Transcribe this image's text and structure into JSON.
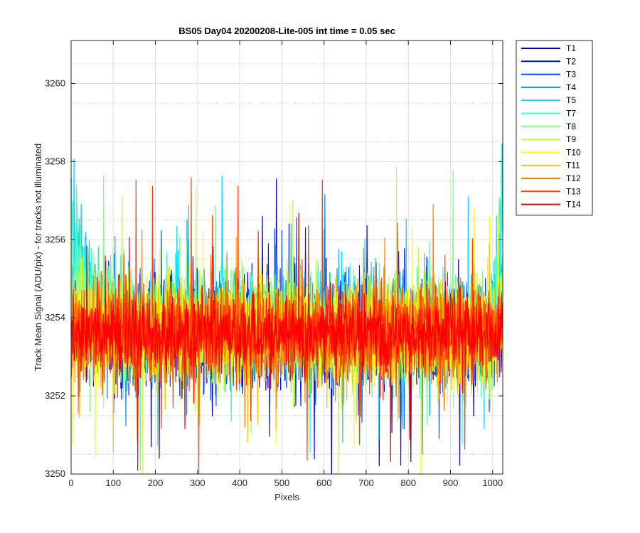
{
  "chart_data": {
    "type": "line",
    "title": "BS05 Day04 20200208-Lite-005 int time = 0.05 sec",
    "xlabel": "Pixels",
    "ylabel": "Track Mean Signal (ADU/pix) - for tracks not illuminated",
    "xlim": [
      0,
      1024
    ],
    "ylim": [
      3250,
      3261.1
    ],
    "xticks": [
      0,
      100,
      200,
      300,
      400,
      500,
      600,
      700,
      800,
      900,
      1000
    ],
    "xtick_labels": [
      "0",
      "100",
      "200",
      "300",
      "400",
      "500",
      "600",
      "700",
      "800",
      "900",
      "1000"
    ],
    "yticks": [
      3250,
      3252,
      3254,
      3256,
      3258,
      3260
    ],
    "ytick_labels": [
      "3250",
      "3252",
      "3254",
      "3256",
      "3258",
      "3260"
    ],
    "grid": true,
    "legend_position": "outside-top-right",
    "series": [
      {
        "name": "T1",
        "color": "#0000c8",
        "mean": 3253.6,
        "noise": 0.85,
        "edge_start": 0.0,
        "edge_end": 0.0
      },
      {
        "name": "T2",
        "color": "#0010ff",
        "mean": 3253.6,
        "noise": 0.85,
        "edge_start": 0.0,
        "edge_end": 0.0
      },
      {
        "name": "T3",
        "color": "#0050ff",
        "mean": 3253.7,
        "noise": 0.85,
        "edge_start": 0.3,
        "edge_end": 0.5
      },
      {
        "name": "T4",
        "color": "#0090ff",
        "mean": 3253.7,
        "noise": 0.85,
        "edge_start": 0.8,
        "edge_end": 1.5
      },
      {
        "name": "T5",
        "color": "#10d0ff",
        "mean": 3253.8,
        "noise": 0.85,
        "edge_start": 2.6,
        "edge_end": 3.5
      },
      {
        "name": "T7",
        "color": "#40ffc0",
        "mean": 3253.8,
        "noise": 0.85,
        "edge_start": 2.2,
        "edge_end": 5.0
      },
      {
        "name": "T8",
        "color": "#80ff80",
        "mean": 3253.7,
        "noise": 0.85,
        "edge_start": 1.2,
        "edge_end": 1.0
      },
      {
        "name": "T9",
        "color": "#c0ff40",
        "mean": 3253.6,
        "noise": 0.85,
        "edge_start": 0.4,
        "edge_end": 0.0
      },
      {
        "name": "T10",
        "color": "#ffff00",
        "mean": 3253.6,
        "noise": 0.85,
        "edge_start": 0.0,
        "edge_end": 0.0
      },
      {
        "name": "T11",
        "color": "#ffc000",
        "mean": 3253.6,
        "noise": 0.85,
        "edge_start": 0.0,
        "edge_end": 0.0
      },
      {
        "name": "T12",
        "color": "#ff8000",
        "mean": 3253.6,
        "noise": 0.8,
        "edge_start": 0.0,
        "edge_end": 0.0
      },
      {
        "name": "T13",
        "color": "#ff4000",
        "mean": 3253.6,
        "noise": 0.75,
        "edge_start": 0.0,
        "edge_end": 0.0
      },
      {
        "name": "T14",
        "color": "#ff0000",
        "mean": 3253.6,
        "noise": 0.65,
        "edge_start": 0.0,
        "edge_end": 0.0
      }
    ]
  }
}
